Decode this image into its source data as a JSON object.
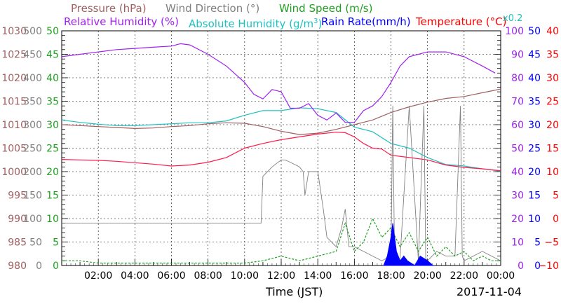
{
  "chart_data": {
    "type": "line",
    "xlabel": "Time (JST)",
    "date": "2017-11-04",
    "x_ticks": [
      "02:00",
      "04:00",
      "06:00",
      "08:00",
      "10:00",
      "12:00",
      "14:00",
      "16:00",
      "18:00",
      "20:00",
      "22:00",
      "00:00"
    ],
    "xlim_hours": [
      0,
      24
    ],
    "grid": true,
    "legend": {
      "pressure": {
        "label": "Pressure (hPa)",
        "color": "#a06060"
      },
      "wind_direction": {
        "label": "Wind Direction (°)",
        "color": "#808080"
      },
      "wind_speed": {
        "label": "Wind Speed (m/s)",
        "color": "#20a020"
      },
      "relative_humidity": {
        "label": "Relative Humidity (%)",
        "color": "#a020f0"
      },
      "absolute_humidity_pre": "Absolute Humidity (g/m",
      "absolute_humidity_sup": "3",
      "absolute_humidity_post": ")",
      "absolute_humidity_color": "#20c0c0",
      "rain_rate": {
        "label": "Rain Rate(mm/h)",
        "color": "#0000ff"
      },
      "temperature": {
        "label": "Temperature (°C)",
        "color": "#ff0000"
      },
      "scale_note": {
        "label": "x0.2",
        "color": "#20c0c0"
      }
    },
    "axes": {
      "pressure": {
        "ticks": [
          "1030",
          "1025",
          "1020",
          "1015",
          "1010",
          "1005",
          "1000",
          "995",
          "990",
          "985",
          "980"
        ],
        "range": [
          980,
          1030
        ],
        "color": "#a06060"
      },
      "wind_direction": {
        "ticks": [
          "500",
          "450",
          "400",
          "350",
          "300",
          "250",
          "200",
          "150",
          "100",
          "50",
          "0"
        ],
        "range": [
          0,
          500
        ],
        "color": "#808080"
      },
      "wind_speed": {
        "ticks": [
          "50",
          "45",
          "40",
          "35",
          "30",
          "25",
          "20",
          "15",
          "10",
          "5",
          "0"
        ],
        "range": [
          0,
          50
        ],
        "color": "#20a020"
      },
      "relative_humidity": {
        "ticks": [
          "100",
          "90",
          "80",
          "70",
          "60",
          "50",
          "40",
          "30",
          "20",
          "10",
          "0"
        ],
        "range": [
          0,
          100
        ],
        "color": "#a020f0"
      },
      "rain_rate": {
        "ticks": [
          "50",
          "45",
          "40",
          "35",
          "30",
          "25",
          "20",
          "15",
          "10",
          "5",
          "0"
        ],
        "range": [
          0,
          50
        ],
        "color": "#0000ff"
      },
      "temperature": {
        "ticks": [
          "40",
          "35",
          "30",
          "25",
          "20",
          "15",
          "10",
          "5",
          "0",
          "−5",
          "−10"
        ],
        "range": [
          -10,
          40
        ],
        "color": "#ff0000"
      }
    },
    "series": [
      {
        "name": "Pressure (hPa)",
        "axis": "pressure",
        "x": [
          0,
          1,
          2,
          3,
          4,
          5,
          6,
          7,
          8,
          9,
          10,
          11,
          12,
          13,
          14,
          15,
          16,
          17,
          18,
          19,
          20,
          21,
          22,
          23,
          24
        ],
        "y": [
          1010,
          1009.8,
          1009.6,
          1009.4,
          1009.2,
          1009.3,
          1009.6,
          1009.8,
          1010.2,
          1010.4,
          1010.3,
          1009.6,
          1008.6,
          1007.9,
          1008.2,
          1009,
          1010,
          1011,
          1012.6,
          1013.8,
          1014.8,
          1015.6,
          1016,
          1016.8,
          1017.6
        ]
      },
      {
        "name": "Absolute Humidity (g/m3)",
        "axis": "wind_speed",
        "x": [
          0,
          1,
          2,
          3,
          4,
          5,
          6,
          7,
          8,
          9,
          10,
          11,
          12,
          13,
          14,
          15,
          16,
          17,
          18,
          19,
          20,
          21,
          22,
          23,
          24
        ],
        "y": [
          31,
          30.5,
          30.1,
          29.8,
          29.8,
          30,
          30.2,
          30.4,
          30.4,
          30.8,
          32,
          33,
          33,
          33.6,
          33.4,
          32.6,
          29.5,
          28.5,
          26,
          25,
          23,
          21.5,
          21.2,
          20.6,
          20.1
        ]
      },
      {
        "name": "Relative Humidity (%)",
        "axis": "relative_humidity",
        "x": [
          0,
          1,
          2,
          3,
          4,
          5,
          6,
          6.5,
          7,
          8,
          9,
          10,
          10.5,
          11,
          11.5,
          12,
          12.5,
          13,
          13.5,
          14,
          14.5,
          15,
          15.5,
          16,
          16.5,
          17,
          17.5,
          18,
          18.5,
          19,
          20,
          21,
          22,
          23,
          23.7
        ],
        "y": [
          89,
          90,
          91,
          92,
          92.5,
          93,
          93.5,
          94.5,
          94,
          90,
          85,
          78,
          73,
          71,
          75,
          74,
          67,
          67,
          69,
          64,
          62,
          65,
          61,
          61,
          66,
          68,
          72,
          78,
          85,
          89,
          91,
          91,
          89,
          85,
          82
        ]
      },
      {
        "name": "Temperature (°C)",
        "axis": "temperature",
        "x": [
          0,
          1,
          2,
          3,
          4,
          5,
          6,
          7,
          8,
          9,
          10,
          11,
          12,
          13,
          14,
          15,
          15.5,
          16,
          16.5,
          17,
          17.5,
          18,
          19,
          20,
          21,
          22,
          23,
          24
        ],
        "y": [
          12.6,
          12.5,
          12.4,
          12.2,
          11.9,
          11.6,
          11.2,
          11.4,
          12,
          13,
          15,
          16,
          16.8,
          17.4,
          18,
          18.4,
          18.3,
          17.4,
          16,
          15,
          14.8,
          13.5,
          13,
          12.5,
          11.4,
          10.9,
          10.6,
          10.2
        ]
      },
      {
        "name": "Wind Direction (°)",
        "axis": "wind_direction",
        "x": [
          0,
          10.9,
          11,
          11.5,
          12,
          12.2,
          12.5,
          13,
          13.2,
          13.3,
          13.5,
          14,
          14.3,
          14.5,
          15,
          15.3,
          15.5,
          15.7,
          16,
          16.5,
          17,
          17.5,
          18,
          18.1,
          18.2,
          18.5,
          19,
          19.5,
          19.8,
          19.9,
          20,
          20.5,
          21,
          21.5,
          21.8,
          21.9,
          22,
          22.5,
          23,
          23.5,
          24
        ],
        "y": [
          90,
          90,
          190,
          210,
          225,
          225,
          220,
          210,
          200,
          150,
          200,
          200,
          120,
          60,
          40,
          80,
          120,
          40,
          40,
          30,
          20,
          10,
          20,
          340,
          10,
          15,
          340,
          10,
          340,
          15,
          10,
          30,
          20,
          20,
          340,
          20,
          10,
          20,
          30,
          20,
          10
        ]
      },
      {
        "name": "Wind Speed (m/s)",
        "axis": "wind_speed",
        "x": [
          0,
          1,
          2,
          3,
          4,
          5,
          6,
          7,
          8,
          9,
          10,
          11,
          12,
          13,
          14,
          15,
          15.5,
          16,
          16.5,
          17,
          17.5,
          18,
          18.5,
          19,
          19.5,
          20,
          20.5,
          21,
          21.5,
          22,
          22.5,
          23,
          23.5,
          24
        ],
        "y": [
          1,
          1,
          0.5,
          0.5,
          0.5,
          0.5,
          0.5,
          0.5,
          0.5,
          0.5,
          0.5,
          1,
          2,
          1,
          2,
          3,
          9,
          3,
          5,
          10,
          6,
          8,
          4,
          7,
          3,
          6,
          2,
          4,
          2,
          3,
          1,
          2,
          1,
          1
        ]
      },
      {
        "name": "Rain Rate(mm/h)",
        "axis": "rain_rate",
        "x": [
          17.6,
          17.8,
          18,
          18.1,
          18.3,
          18.5,
          18.7,
          18.9,
          19.3,
          19.6,
          20,
          20.3
        ],
        "y": [
          0,
          2,
          6,
          9,
          3,
          1,
          2,
          1,
          0,
          2,
          1,
          0
        ]
      }
    ]
  }
}
